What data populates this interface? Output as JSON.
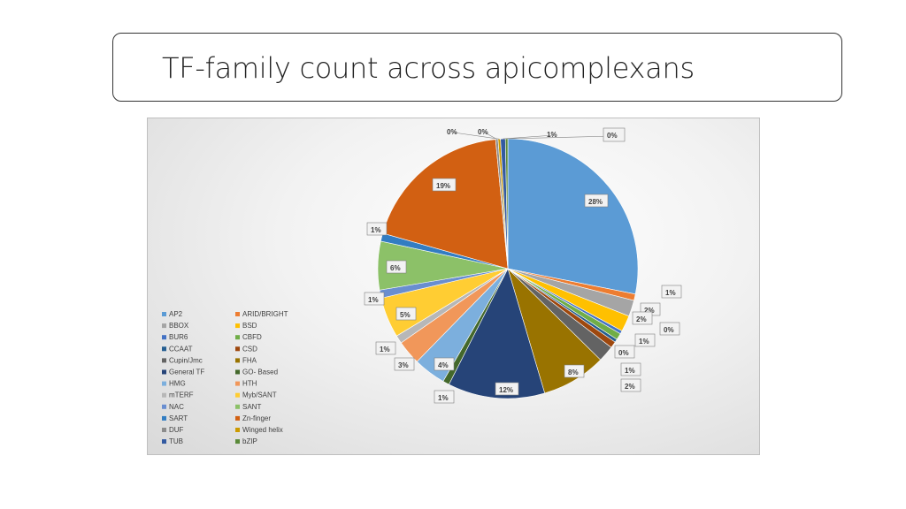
{
  "slide": {
    "title": "TF-family count across apicomplexans"
  },
  "chart_data": {
    "type": "pie",
    "title": "",
    "legend_position": "bottom-left",
    "start_angle_deg": 0,
    "slices": [
      {
        "name": "AP2",
        "value": 28,
        "label": "28%",
        "color": "#5b9bd5"
      },
      {
        "name": "ARID/BRIGHT",
        "value": 0.8,
        "label": "1%",
        "color": "#ed7d31"
      },
      {
        "name": "BBOX",
        "value": 2,
        "label": "2%",
        "color": "#a5a5a5"
      },
      {
        "name": "BSD",
        "value": 2,
        "label": "2%",
        "color": "#ffc000"
      },
      {
        "name": "BUR6",
        "value": 0.4,
        "label": "0%",
        "color": "#4472c4"
      },
      {
        "name": "CBFD",
        "value": 0.8,
        "label": "1%",
        "color": "#70ad47"
      },
      {
        "name": "CCAAT",
        "value": 0.4,
        "label": "0%",
        "color": "#255e91"
      },
      {
        "name": "CSD",
        "value": 0.8,
        "label": "1%",
        "color": "#9e480e"
      },
      {
        "name": "Cupin/Jmc",
        "value": 2,
        "label": "2%",
        "color": "#636363"
      },
      {
        "name": "FHA",
        "value": 8,
        "label": "8%",
        "color": "#997300"
      },
      {
        "name": "General TF",
        "value": 12,
        "label": "12%",
        "color": "#264478"
      },
      {
        "name": "GO- Based",
        "value": 0.8,
        "label": "1%",
        "color": "#43682b"
      },
      {
        "name": "HMG",
        "value": 4,
        "label": "4%",
        "color": "#7cafdd"
      },
      {
        "name": "HTH",
        "value": 3,
        "label": "3%",
        "color": "#f1975a"
      },
      {
        "name": "mTERF",
        "value": 1,
        "label": "1%",
        "color": "#b7b7b7"
      },
      {
        "name": "Myb/SANT",
        "value": 5,
        "label": "5%",
        "color": "#ffcd33"
      },
      {
        "name": "NAC",
        "value": 1,
        "label": "1%",
        "color": "#698ed0"
      },
      {
        "name": "SANT",
        "value": 6,
        "label": "6%",
        "color": "#8cc168"
      },
      {
        "name": "SART",
        "value": 1,
        "label": "1%",
        "color": "#327dc2"
      },
      {
        "name": "Zn-finger",
        "value": 19,
        "label": "19%",
        "color": "#d26012"
      },
      {
        "name": "DUF",
        "value": 0.3,
        "label": "0%",
        "color": "#8c8c8c"
      },
      {
        "name": "Winged helix",
        "value": 0.3,
        "label": "0%",
        "color": "#cc9a00"
      },
      {
        "name": "TUB",
        "value": 0.6,
        "label": "1%",
        "color": "#335aa1"
      },
      {
        "name": "bZIP",
        "value": 0.3,
        "label": "0%",
        "color": "#5a8a39"
      }
    ]
  }
}
